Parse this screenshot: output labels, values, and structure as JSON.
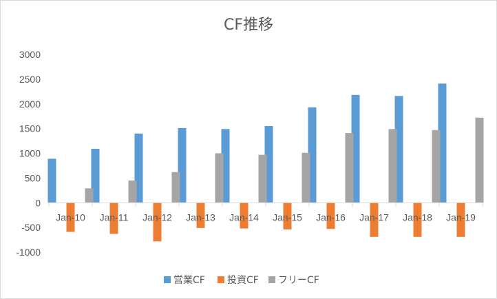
{
  "chart_data": {
    "type": "bar",
    "title": "CF推移",
    "xlabel": "",
    "ylabel": "",
    "categories": [
      "Jan-10",
      "Jan-11",
      "Jan-12",
      "Jan-13",
      "Jan-14",
      "Jan-15",
      "Jan-16",
      "Jan-17",
      "Jan-18",
      "Jan-19"
    ],
    "series": [
      {
        "name": "営業CF",
        "color": "#5b9bd5",
        "values": [
          890,
          1090,
          1400,
          1510,
          1490,
          1550,
          1930,
          2180,
          2160,
          2410
        ]
      },
      {
        "name": "投資CF",
        "color": "#ed7d31",
        "values": [
          -590,
          -630,
          -780,
          -510,
          -520,
          -540,
          -530,
          -690,
          -690,
          -690
        ]
      },
      {
        "name": "フリーCF",
        "color": "#a5a5a5",
        "values": [
          290,
          450,
          620,
          1000,
          970,
          1010,
          1410,
          1490,
          1470,
          1720
        ]
      }
    ],
    "ylim": [
      -1000,
      3000
    ],
    "yticks": [
      3000,
      2500,
      2000,
      1500,
      1000,
      500,
      0,
      -500,
      -1000
    ],
    "grid": false,
    "legend": "bottom"
  }
}
